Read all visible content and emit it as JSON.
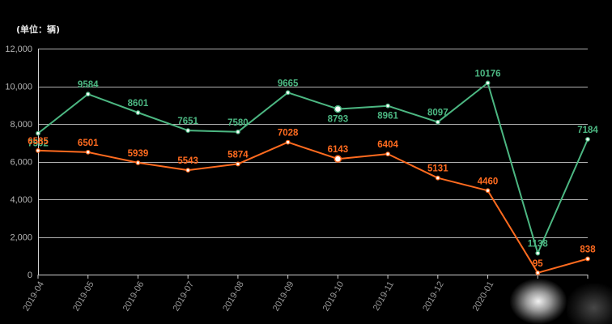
{
  "chart_data": {
    "type": "line",
    "unit_label": "(单位：辆)",
    "categories": [
      "2019-04",
      "2019-05",
      "2019-06",
      "2019-07",
      "2019-08",
      "2019-09",
      "2019-10",
      "2019-11",
      "2019-12",
      "2020-01",
      "",
      ""
    ],
    "series": [
      {
        "color": "#4cb782",
        "values": [
          7502,
          9584,
          8601,
          7651,
          7580,
          9665,
          8793,
          8961,
          8097,
          10176,
          1138,
          7184
        ]
      },
      {
        "color": "#ff6b1f",
        "values": [
          6585,
          6501,
          5939,
          5543,
          5874,
          7028,
          6143,
          6404,
          5131,
          4460,
          95,
          838
        ]
      }
    ],
    "ylim": [
      0,
      12000
    ],
    "yticks": [
      0,
      2000,
      4000,
      6000,
      8000,
      10000,
      12000
    ],
    "ytick_labels": [
      "0",
      "2,000",
      "4,000",
      "6,000",
      "8,000",
      "10,000",
      "12,000"
    ],
    "grid": true
  },
  "colors": {
    "background": "#000000",
    "gridline": "#d0d0d0",
    "axis_line": "#cfcfcf",
    "point_fill": "#ffffff"
  }
}
